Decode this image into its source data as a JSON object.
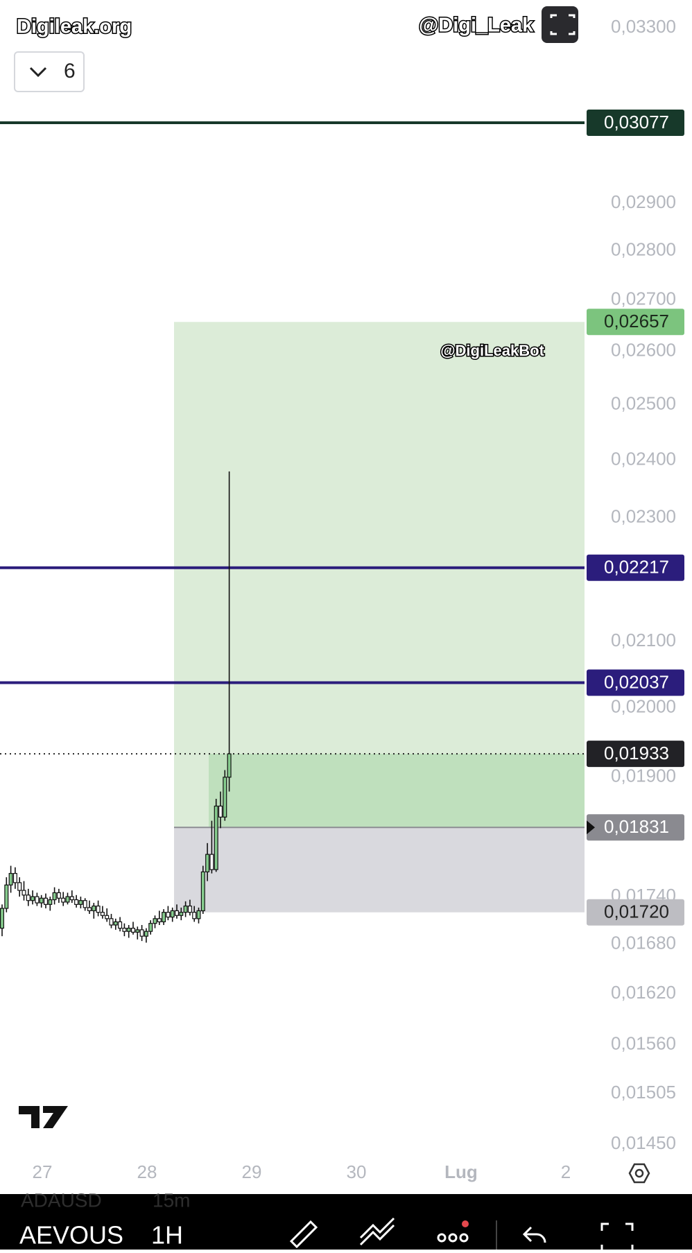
{
  "header": {
    "watermark_left": "Digileak.org",
    "watermark_right": "@Digi_Leak",
    "indicator_count": "6"
  },
  "chart": {
    "watermark_center": "@DigiLeakBot",
    "log_scale": true,
    "ylim": [
      0.0145,
      0.033
    ],
    "yticks": [
      {
        "value": 0.033,
        "label": "0,03300"
      },
      {
        "value": 0.029,
        "label": "0,02900"
      },
      {
        "value": 0.028,
        "label": "0,02800"
      },
      {
        "value": 0.027,
        "label": "0,02700"
      },
      {
        "value": 0.026,
        "label": "0,02600"
      },
      {
        "value": 0.025,
        "label": "0,02500"
      },
      {
        "value": 0.024,
        "label": "0,02400"
      },
      {
        "value": 0.023,
        "label": "0,02300"
      },
      {
        "value": 0.021,
        "label": "0,02100"
      },
      {
        "value": 0.02,
        "label": "0,02000"
      },
      {
        "value": 0.019,
        "label": "0,01900"
      },
      {
        "value": 0.0174,
        "label": "0,01740"
      },
      {
        "value": 0.0168,
        "label": "0,01680"
      },
      {
        "value": 0.0162,
        "label": "0,01620"
      },
      {
        "value": 0.0156,
        "label": "0,01560"
      },
      {
        "value": 0.01505,
        "label": "0,01505"
      },
      {
        "value": 0.0145,
        "label": "0,01450"
      }
    ],
    "xticks": [
      "27",
      "28",
      "29",
      "30",
      "Lug",
      "2"
    ],
    "levels": [
      {
        "value": 0.03077,
        "label": "0,03077",
        "color": "#17392a"
      },
      {
        "value": 0.02217,
        "label": "0,02217",
        "color": "#2b1d7c"
      },
      {
        "value": 0.02037,
        "label": "0,02037",
        "color": "#2b1d7c"
      }
    ],
    "current_price": {
      "value": 0.01933,
      "label": "0,01933"
    },
    "position": {
      "target": {
        "value": 0.02657,
        "label": "0,02657"
      },
      "entry": {
        "value": 0.01831,
        "label": "0,01831"
      },
      "stop": {
        "value": 0.0172,
        "label": "0,01720"
      }
    },
    "up_color": "#86cc8e",
    "down_color": "#ffffff",
    "candles": [
      [
        0.017,
        0.0173,
        0.0169,
        0.01725
      ],
      [
        0.01725,
        0.01765,
        0.0172,
        0.01755
      ],
      [
        0.01755,
        0.0178,
        0.01745,
        0.0177
      ],
      [
        0.0177,
        0.01778,
        0.0175,
        0.01758
      ],
      [
        0.01758,
        0.01765,
        0.0174,
        0.01748
      ],
      [
        0.01748,
        0.0176,
        0.01735,
        0.01742
      ],
      [
        0.01742,
        0.0175,
        0.01728,
        0.01735
      ],
      [
        0.01735,
        0.01748,
        0.0173,
        0.0174
      ],
      [
        0.0174,
        0.01745,
        0.01728,
        0.01732
      ],
      [
        0.01732,
        0.01742,
        0.01726,
        0.01738
      ],
      [
        0.01738,
        0.01744,
        0.01725,
        0.0173
      ],
      [
        0.0173,
        0.0174,
        0.01722,
        0.01736
      ],
      [
        0.01736,
        0.01752,
        0.0173,
        0.01745
      ],
      [
        0.01745,
        0.0175,
        0.01732,
        0.01738
      ],
      [
        0.01738,
        0.01746,
        0.01728,
        0.01733
      ],
      [
        0.01733,
        0.01745,
        0.0173,
        0.0174
      ],
      [
        0.0174,
        0.01748,
        0.01732,
        0.01736
      ],
      [
        0.01736,
        0.01742,
        0.01726,
        0.0173
      ],
      [
        0.0173,
        0.0174,
        0.01725,
        0.01735
      ],
      [
        0.01735,
        0.01738,
        0.01722,
        0.01726
      ],
      [
        0.01726,
        0.01735,
        0.01718,
        0.01722
      ],
      [
        0.01722,
        0.01732,
        0.01712,
        0.01728
      ],
      [
        0.01728,
        0.01735,
        0.01715,
        0.0172
      ],
      [
        0.0172,
        0.01728,
        0.01712,
        0.01716
      ],
      [
        0.01716,
        0.01725,
        0.01708,
        0.01712
      ],
      [
        0.01712,
        0.01718,
        0.017,
        0.01704
      ],
      [
        0.01704,
        0.01712,
        0.01698,
        0.01708
      ],
      [
        0.01708,
        0.01714,
        0.01696,
        0.017
      ],
      [
        0.017,
        0.01706,
        0.0169,
        0.01696
      ],
      [
        0.01696,
        0.01704,
        0.01688,
        0.017
      ],
      [
        0.017,
        0.01708,
        0.01692,
        0.01695
      ],
      [
        0.01695,
        0.01702,
        0.01686,
        0.01698
      ],
      [
        0.01698,
        0.01704,
        0.01684,
        0.0169
      ],
      [
        0.0169,
        0.017,
        0.01682,
        0.01696
      ],
      [
        0.01696,
        0.0171,
        0.01692,
        0.01706
      ],
      [
        0.01706,
        0.01716,
        0.017,
        0.01712
      ],
      [
        0.01712,
        0.01722,
        0.01704,
        0.01708
      ],
      [
        0.01708,
        0.01724,
        0.01704,
        0.0172
      ],
      [
        0.0172,
        0.01728,
        0.0171,
        0.01714
      ],
      [
        0.01714,
        0.01726,
        0.01708,
        0.01722
      ],
      [
        0.01722,
        0.0173,
        0.01712,
        0.01716
      ],
      [
        0.01716,
        0.01726,
        0.0171,
        0.0172
      ],
      [
        0.0172,
        0.01734,
        0.01714,
        0.01728
      ],
      [
        0.01728,
        0.01736,
        0.01716,
        0.0172
      ],
      [
        0.0172,
        0.01728,
        0.01708,
        0.01712
      ],
      [
        0.01712,
        0.01726,
        0.01706,
        0.01722
      ],
      [
        0.01722,
        0.0178,
        0.01718,
        0.01772
      ],
      [
        0.01772,
        0.0181,
        0.0176,
        0.01795
      ],
      [
        0.01795,
        0.0184,
        0.0177,
        0.01775
      ],
      [
        0.01775,
        0.0187,
        0.01772,
        0.0186
      ],
      [
        0.0186,
        0.0188,
        0.0183,
        0.01845
      ],
      [
        0.01845,
        0.0191,
        0.0184,
        0.019
      ],
      [
        0.019,
        0.0238,
        0.0188,
        0.01933
      ]
    ]
  },
  "bottom_bar": {
    "symbol": "AEVOUS",
    "interval": "1H",
    "prev_symbol": "ADAUSD",
    "prev_interval": "15m"
  }
}
